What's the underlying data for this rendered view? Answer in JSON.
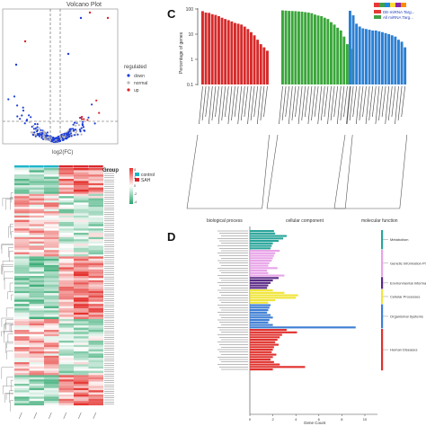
{
  "panels": {
    "A": {
      "title": "Volcano Plot",
      "xlabel": "log2(FC)",
      "legend": {
        "title": "regulated",
        "entries": [
          "down",
          "normal",
          "up"
        ]
      },
      "colors": {
        "down": "#1f3fd6",
        "normal": "#b8b8b8",
        "up": "#d9262c"
      }
    },
    "B": {
      "legend_title": "Group",
      "groups": [
        "control",
        "SAH"
      ],
      "group_colors": [
        "#1fb5c9",
        "#d9262c"
      ],
      "colorbar_ticks": [
        "4",
        "2",
        "0",
        "-2",
        "-4"
      ],
      "colorbar_colors": {
        "high": "#e8322e",
        "mid": "#ffffff",
        "low": "#2aa56b"
      }
    },
    "C": {
      "label": "C",
      "ylabel": "Percentage of genes",
      "yticks": [
        "100",
        "10",
        "1",
        "0.1"
      ],
      "legend": [
        "DE-miRNA Targ...",
        "All miRNA Targ..."
      ],
      "categories": [
        "biological process",
        "cellular component",
        "molecular function"
      ],
      "category_colors": [
        "#d62a2a",
        "#3aa63a",
        "#2a7fd4"
      ],
      "top_bar_colors": [
        "#e53935",
        "#43a047",
        "#1e88e5",
        "#fdd835",
        "#8e24aa",
        "#fb8c00"
      ]
    },
    "D": {
      "label": "D",
      "xlabel": "Gene Count",
      "xticks": [
        "0",
        "2",
        "4",
        "6",
        "8",
        "10"
      ],
      "groups": [
        {
          "name": "Metabolism",
          "color": "#2aa59a"
        },
        {
          "name": "Genetic Information Processing",
          "color": "#e8a4e8"
        },
        {
          "name": "Environmental Information Proce...",
          "color": "#5b2a86"
        },
        {
          "name": "Cellular Processes",
          "color": "#f0e53a"
        },
        {
          "name": "Organismal Systems",
          "color": "#3f7fd4"
        },
        {
          "name": "Human Diseases",
          "color": "#e0322e"
        }
      ]
    }
  },
  "chart_data": [
    {
      "type": "scatter",
      "title": "Volcano Plot",
      "xlabel": "log2(FC)",
      "ylabel": "",
      "legend": [
        "down",
        "normal",
        "up"
      ],
      "legend_position": "right",
      "thresholds": {
        "vertical_lines": 2,
        "horizontal_line": 1
      }
    },
    {
      "type": "heatmap",
      "columns": 6,
      "column_groups": [
        "control",
        "control",
        "control",
        "SAH",
        "SAH",
        "SAH"
      ],
      "value_range": [
        -4,
        4
      ]
    },
    {
      "type": "bar",
      "ylabel": "Percentage of genes",
      "yscale": "log",
      "ylim": [
        0.1,
        100
      ],
      "series": [
        {
          "name": "DE-miRNA Targ..."
        },
        {
          "name": "All miRNA Targ..."
        }
      ],
      "category_groups": [
        {
          "name": "biological process",
          "values": [
            82,
            72,
            70,
            62,
            58,
            52,
            45,
            40,
            36,
            32,
            28,
            26,
            24,
            20,
            16,
            12,
            9,
            6,
            4,
            3,
            2.2
          ]
        },
        {
          "name": "cellular component",
          "values": [
            88,
            86,
            84,
            83,
            82,
            80,
            78,
            75,
            72,
            68,
            60,
            55,
            52,
            45,
            40,
            30,
            24,
            18,
            14,
            8,
            4,
            2.6
          ]
        },
        {
          "name": "molecular function",
          "values": [
            85,
            56,
            26,
            20,
            17,
            16,
            15,
            14,
            14,
            13,
            12,
            11,
            10,
            9,
            8,
            6,
            5,
            3
          ]
        }
      ]
    },
    {
      "type": "bar",
      "orientation": "horizontal",
      "xlabel": "Gene Count",
      "xlim": [
        0,
        11
      ],
      "groups": [
        {
          "name": "Metabolism",
          "values": [
            2.1,
            2.2,
            3.2,
            2.9,
            2.5,
            2.0,
            1.9,
            1.8
          ]
        },
        {
          "name": "Genetic Information Processing",
          "values": [
            2.6,
            2.2,
            2.1,
            2.0,
            1.9,
            1.7,
            1.6,
            2.4,
            1.5,
            1.6,
            3.0
          ]
        },
        {
          "name": "Environmental Information Proce...",
          "values": [
            2.5,
            2.0,
            1.8,
            1.6,
            1.5
          ]
        },
        {
          "name": "Cellular Processes",
          "values": [
            2.0,
            3.0,
            4.2,
            4.0,
            2.2,
            1.6
          ]
        },
        {
          "name": "Organismal Systems",
          "values": [
            1.8,
            1.7,
            1.6,
            1.5,
            1.8,
            2.0,
            1.7,
            1.6,
            2.0,
            9.2
          ]
        },
        {
          "name": "Human Diseases",
          "values": [
            3.2,
            4.1,
            2.8,
            2.6,
            2.4,
            2.2,
            2.5,
            2.1,
            2.0,
            1.9,
            2.3,
            2.0,
            1.8,
            2.1,
            2.6,
            4.8,
            2.0
          ]
        }
      ]
    }
  ]
}
